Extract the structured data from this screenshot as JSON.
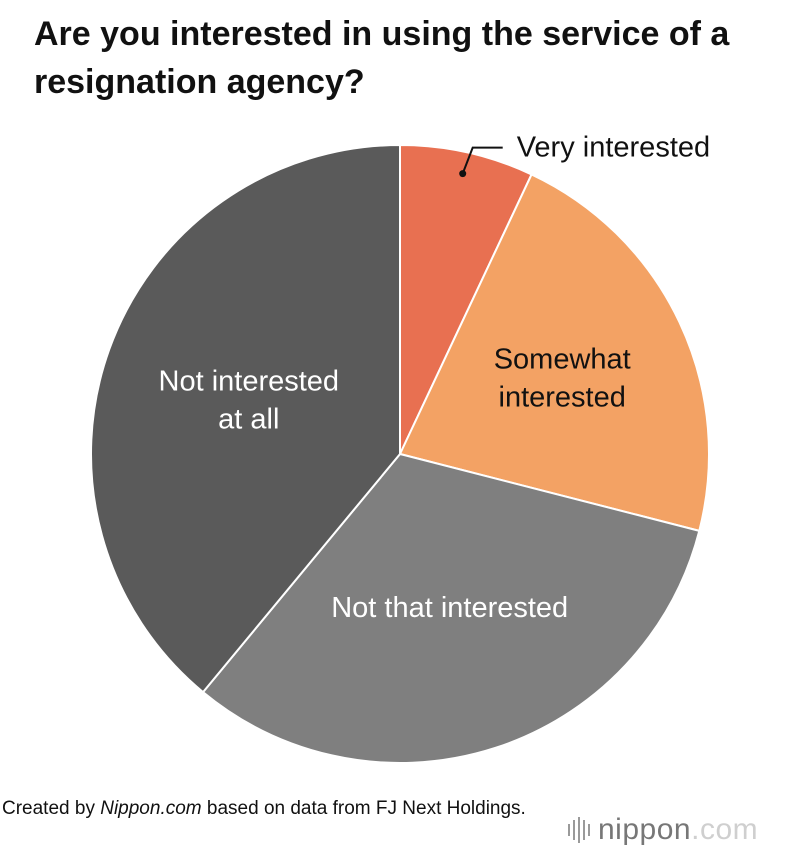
{
  "title": "Are you interested in using the service of a resignation agency?",
  "chart_data": {
    "type": "pie",
    "slices": [
      {
        "label": "Very interested",
        "value": 7,
        "color": "#E87051"
      },
      {
        "label": "Somewhat interested",
        "value": 22,
        "color": "#F3A264"
      },
      {
        "label": "Not that interested",
        "value": 32,
        "color": "#7F7F7F"
      },
      {
        "label": "Not interested at all",
        "value": 39,
        "color": "#5A5A5A"
      }
    ]
  },
  "footer": {
    "prefix": "Created by ",
    "source_name": "Nippon.com",
    "suffix": " based on data from FJ Next Holdings."
  },
  "logo": {
    "word": "nippon",
    "dot": ".",
    "tld": "com"
  }
}
